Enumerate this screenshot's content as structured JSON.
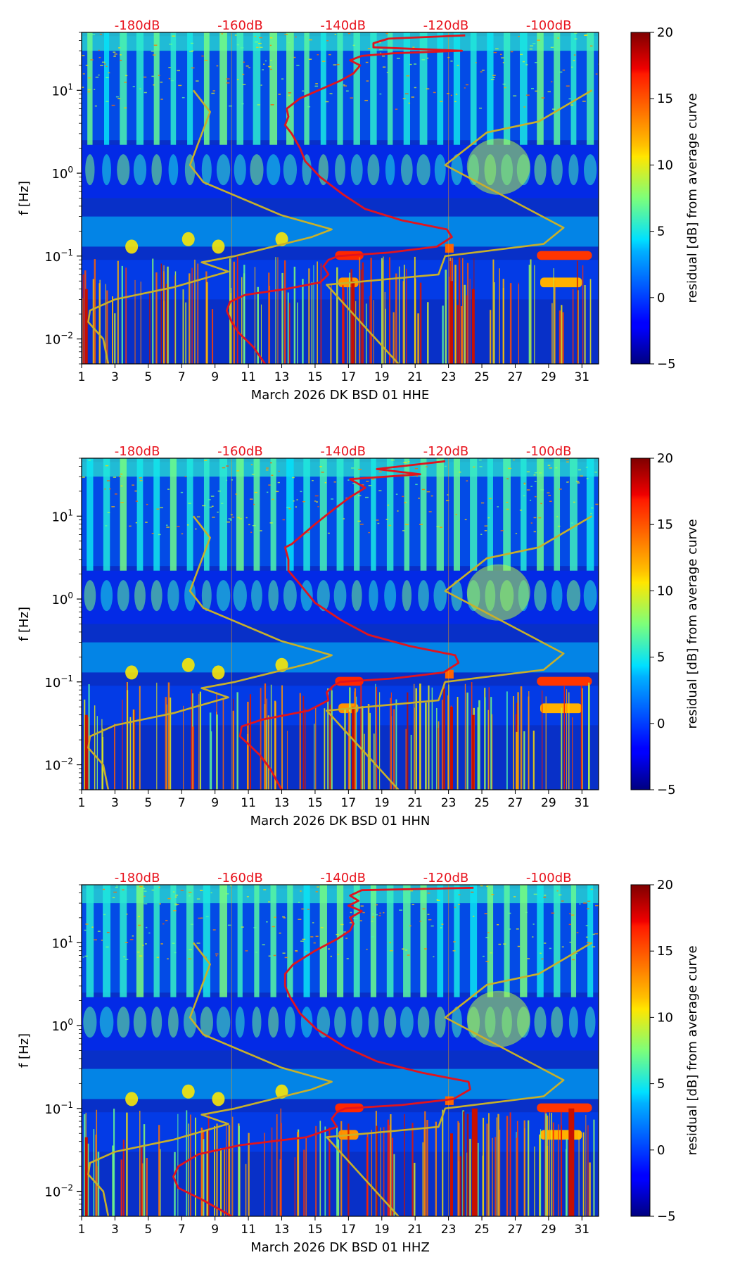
{
  "chart_data": [
    {
      "type": "heatmap",
      "component": "HHE",
      "xlabel": "March 2026 DK BSD 01 HHE",
      "ylabel": "f [Hz]",
      "xticks": [
        1,
        3,
        5,
        7,
        9,
        11,
        13,
        15,
        17,
        19,
        21,
        23,
        25,
        27,
        29,
        31
      ],
      "xlim": [
        1,
        32
      ],
      "ylim_hz": [
        0.005,
        50
      ],
      "yticks": [
        {
          "value": 0.01,
          "base": "10",
          "exp": "−2"
        },
        {
          "value": 0.1,
          "base": "10",
          "exp": "−1"
        },
        {
          "value": 1,
          "base": "10",
          "exp": "0"
        },
        {
          "value": 10,
          "base": "10",
          "exp": "1"
        }
      ],
      "top_axis_db": [
        {
          "value": -180,
          "label": "-180dB"
        },
        {
          "value": -160,
          "label": "-160dB"
        },
        {
          "value": -140,
          "label": "-140dB"
        },
        {
          "value": -120,
          "label": "-120dB"
        },
        {
          "value": -100,
          "label": "-100dB"
        }
      ],
      "colorbar": {
        "label": "residual [dB] from average curve",
        "min": -5,
        "max": 20,
        "ticks": [
          -5,
          0,
          5,
          10,
          15,
          20
        ],
        "tick_labels": [
          "−5",
          "0",
          "5",
          "10",
          "15",
          "20"
        ]
      },
      "series": [
        {
          "name": "average PSD curve",
          "color": "#e0141e",
          "points_day_hz": [
            [
              12,
              0.005
            ],
            [
              11.3,
              0.008
            ],
            [
              10.4,
              0.012
            ],
            [
              10,
              0.016
            ],
            [
              9.7,
              0.022
            ],
            [
              9.9,
              0.028
            ],
            [
              10.8,
              0.034
            ],
            [
              13.2,
              0.04
            ],
            [
              15.3,
              0.048
            ],
            [
              15.8,
              0.06
            ],
            [
              15.5,
              0.075
            ],
            [
              15.8,
              0.09
            ],
            [
              16.4,
              0.1
            ],
            [
              19.4,
              0.11
            ],
            [
              22.3,
              0.13
            ],
            [
              23.2,
              0.17
            ],
            [
              22.9,
              0.21
            ],
            [
              20.2,
              0.27
            ],
            [
              18,
              0.37
            ],
            [
              16.7,
              0.55
            ],
            [
              15.3,
              0.9
            ],
            [
              14.4,
              1.4
            ],
            [
              14.1,
              2
            ],
            [
              13.6,
              3
            ],
            [
              13.2,
              3.8
            ],
            [
              13.4,
              4.8
            ],
            [
              13.3,
              6
            ],
            [
              14.1,
              8
            ],
            [
              15.2,
              10
            ],
            [
              16.5,
              13
            ],
            [
              17.3,
              16
            ],
            [
              17.7,
              20
            ],
            [
              17.1,
              23
            ],
            [
              17.8,
              26
            ],
            [
              19.7,
              28
            ],
            [
              23.8,
              30
            ],
            [
              18.5,
              33
            ],
            [
              18.5,
              37
            ],
            [
              19.4,
              42
            ],
            [
              24,
              46
            ]
          ]
        },
        {
          "name": "NLNM / NHNM noise models",
          "color": "#c8b02a",
          "segments": [
            [
              [
                2.6,
                0.005
              ],
              [
                2.3,
                0.01
              ],
              [
                1.4,
                0.016
              ],
              [
                1.5,
                0.022
              ],
              [
                3,
                0.03
              ],
              [
                6.5,
                0.042
              ],
              [
                9.8,
                0.065
              ],
              [
                8.2,
                0.084
              ],
              [
                10.2,
                0.1
              ],
              [
                14.8,
                0.17
              ],
              [
                16,
                0.21
              ],
              [
                13,
                0.31
              ],
              [
                8.3,
                0.78
              ],
              [
                7.5,
                1.25
              ],
              [
                8.7,
                5.5
              ],
              [
                7.7,
                10
              ]
            ],
            [
              [
                20,
                0.005
              ],
              [
                15.7,
                0.045
              ],
              [
                22.4,
                0.06
              ],
              [
                22.8,
                0.1
              ],
              [
                28.7,
                0.14
              ],
              [
                29.9,
                0.22
              ],
              [
                22.8,
                1.25
              ],
              [
                25.3,
                3.1
              ],
              [
                28.4,
                4.2
              ],
              [
                31.6,
                10
              ]
            ]
          ]
        }
      ],
      "notes": "vertical striping and diurnal bands; high residual at 0.05 and 0.1 Hz after day 16"
    },
    {
      "type": "heatmap",
      "component": "HHN",
      "xlabel": "March 2026 DK BSD 01 HHN",
      "ylabel": "f [Hz]",
      "xticks": [
        1,
        3,
        5,
        7,
        9,
        11,
        13,
        15,
        17,
        19,
        21,
        23,
        25,
        27,
        29,
        31
      ],
      "xlim": [
        1,
        32
      ],
      "ylim_hz": [
        0.005,
        50
      ],
      "yticks": [
        {
          "value": 0.01,
          "base": "10",
          "exp": "−2"
        },
        {
          "value": 0.1,
          "base": "10",
          "exp": "−1"
        },
        {
          "value": 1,
          "base": "10",
          "exp": "0"
        },
        {
          "value": 10,
          "base": "10",
          "exp": "1"
        }
      ],
      "top_axis_db": [
        {
          "value": -180,
          "label": "-180dB"
        },
        {
          "value": -160,
          "label": "-160dB"
        },
        {
          "value": -140,
          "label": "-140dB"
        },
        {
          "value": -120,
          "label": "-120dB"
        },
        {
          "value": -100,
          "label": "-100dB"
        }
      ],
      "colorbar": {
        "label": "residual [dB] from average curve",
        "min": -5,
        "max": 20,
        "ticks": [
          -5,
          0,
          5,
          10,
          15,
          20
        ],
        "tick_labels": [
          "−5",
          "0",
          "5",
          "10",
          "15",
          "20"
        ]
      },
      "series": [
        {
          "name": "average PSD curve",
          "color": "#e0141e",
          "points_day_hz": [
            [
              13,
              0.005
            ],
            [
              12.3,
              0.009
            ],
            [
              11.7,
              0.013
            ],
            [
              11.1,
              0.017
            ],
            [
              10.5,
              0.022
            ],
            [
              10.6,
              0.029
            ],
            [
              11.8,
              0.035
            ],
            [
              14.6,
              0.045
            ],
            [
              15.8,
              0.06
            ],
            [
              15.7,
              0.075
            ],
            [
              16.1,
              0.09
            ],
            [
              16.5,
              0.1
            ],
            [
              19.7,
              0.11
            ],
            [
              22.7,
              0.13
            ],
            [
              23.6,
              0.17
            ],
            [
              23.4,
              0.21
            ],
            [
              20.7,
              0.27
            ],
            [
              18.2,
              0.37
            ],
            [
              16.6,
              0.55
            ],
            [
              15,
              0.9
            ],
            [
              14.1,
              1.5
            ],
            [
              13.4,
              2.2
            ],
            [
              13.4,
              3
            ],
            [
              13.2,
              4.2
            ],
            [
              13.6,
              4.6
            ],
            [
              15,
              8
            ],
            [
              16.1,
              12
            ],
            [
              17.1,
              17
            ],
            [
              18,
              22
            ],
            [
              17.1,
              28
            ],
            [
              21.3,
              32
            ],
            [
              18.7,
              37
            ],
            [
              21.1,
              42
            ],
            [
              22.8,
              46
            ]
          ]
        },
        {
          "name": "NLNM / NHNM noise models",
          "color": "#c8b02a",
          "segments": [
            [
              [
                2.6,
                0.005
              ],
              [
                2.3,
                0.01
              ],
              [
                1.4,
                0.016
              ],
              [
                1.5,
                0.022
              ],
              [
                3,
                0.03
              ],
              [
                6.5,
                0.042
              ],
              [
                9.8,
                0.065
              ],
              [
                8.2,
                0.084
              ],
              [
                10.2,
                0.1
              ],
              [
                14.8,
                0.17
              ],
              [
                16,
                0.21
              ],
              [
                13,
                0.31
              ],
              [
                8.3,
                0.78
              ],
              [
                7.5,
                1.25
              ],
              [
                8.7,
                5.5
              ],
              [
                7.7,
                10
              ]
            ],
            [
              [
                20,
                0.005
              ],
              [
                15.7,
                0.045
              ],
              [
                22.4,
                0.06
              ],
              [
                22.8,
                0.1
              ],
              [
                28.7,
                0.14
              ],
              [
                29.9,
                0.22
              ],
              [
                22.8,
                1.25
              ],
              [
                25.3,
                3.1
              ],
              [
                28.4,
                4.2
              ],
              [
                31.6,
                10
              ]
            ]
          ]
        }
      ],
      "notes": "similar pattern to HHE"
    },
    {
      "type": "heatmap",
      "component": "HHZ",
      "xlabel": "March 2026 DK BSD 01 HHZ",
      "ylabel": "f [Hz]",
      "xticks": [
        1,
        3,
        5,
        7,
        9,
        11,
        13,
        15,
        17,
        19,
        21,
        23,
        25,
        27,
        29,
        31
      ],
      "xlim": [
        1,
        32
      ],
      "ylim_hz": [
        0.005,
        50
      ],
      "yticks": [
        {
          "value": 0.01,
          "base": "10",
          "exp": "−2"
        },
        {
          "value": 0.1,
          "base": "10",
          "exp": "−1"
        },
        {
          "value": 1,
          "base": "10",
          "exp": "0"
        },
        {
          "value": 10,
          "base": "10",
          "exp": "1"
        }
      ],
      "top_axis_db": [
        {
          "value": -180,
          "label": "-180dB"
        },
        {
          "value": -160,
          "label": "-160dB"
        },
        {
          "value": -140,
          "label": "-140dB"
        },
        {
          "value": -120,
          "label": "-120dB"
        },
        {
          "value": -100,
          "label": "-100dB"
        }
      ],
      "colorbar": {
        "label": "residual [dB] from average curve",
        "min": -5,
        "max": 20,
        "ticks": [
          -5,
          0,
          5,
          10,
          15,
          20
        ],
        "tick_labels": [
          "−5",
          "0",
          "5",
          "10",
          "15",
          "20"
        ]
      },
      "series": [
        {
          "name": "average PSD curve",
          "color": "#e0141e",
          "points_day_hz": [
            [
              10,
              0.005
            ],
            [
              8.2,
              0.008
            ],
            [
              6.8,
              0.011
            ],
            [
              6.5,
              0.015
            ],
            [
              6.8,
              0.02
            ],
            [
              8,
              0.028
            ],
            [
              10.5,
              0.036
            ],
            [
              14.5,
              0.045
            ],
            [
              16.3,
              0.06
            ],
            [
              16,
              0.075
            ],
            [
              16.3,
              0.09
            ],
            [
              16.8,
              0.1
            ],
            [
              20.2,
              0.11
            ],
            [
              23.3,
              0.13
            ],
            [
              24.3,
              0.17
            ],
            [
              24.2,
              0.21
            ],
            [
              21.4,
              0.27
            ],
            [
              18.7,
              0.37
            ],
            [
              16.8,
              0.55
            ],
            [
              15.1,
              0.9
            ],
            [
              14.1,
              1.4
            ],
            [
              13.5,
              2.2
            ],
            [
              13.2,
              3
            ],
            [
              13.2,
              4.2
            ],
            [
              13.7,
              5.5
            ],
            [
              15,
              8
            ],
            [
              16.3,
              11
            ],
            [
              17.1,
              14
            ],
            [
              17.3,
              17
            ],
            [
              17.1,
              20
            ],
            [
              17.8,
              24
            ],
            [
              17,
              28
            ],
            [
              17.6,
              32
            ],
            [
              17.1,
              37
            ],
            [
              17.8,
              43
            ],
            [
              24.5,
              46
            ]
          ]
        },
        {
          "name": "NLNM / NHNM noise models",
          "color": "#c8b02a",
          "segments": [
            [
              [
                2.6,
                0.005
              ],
              [
                2.3,
                0.01
              ],
              [
                1.4,
                0.016
              ],
              [
                1.5,
                0.022
              ],
              [
                3,
                0.03
              ],
              [
                6.5,
                0.042
              ],
              [
                9.8,
                0.065
              ],
              [
                8.2,
                0.084
              ],
              [
                10.2,
                0.1
              ],
              [
                14.8,
                0.17
              ],
              [
                16,
                0.21
              ],
              [
                13,
                0.31
              ],
              [
                8.3,
                0.78
              ],
              [
                7.5,
                1.25
              ],
              [
                8.7,
                5.5
              ],
              [
                7.7,
                10
              ]
            ],
            [
              [
                20,
                0.005
              ],
              [
                15.7,
                0.045
              ],
              [
                22.4,
                0.06
              ],
              [
                22.8,
                0.1
              ],
              [
                28.7,
                0.14
              ],
              [
                29.9,
                0.22
              ],
              [
                22.8,
                1.25
              ],
              [
                25.3,
                3.1
              ],
              [
                28.4,
                4.2
              ],
              [
                31.6,
                10
              ]
            ]
          ]
        }
      ],
      "notes": "strong dark-red vertical streaks near day 24 and day 30 below 0.05 Hz"
    }
  ]
}
